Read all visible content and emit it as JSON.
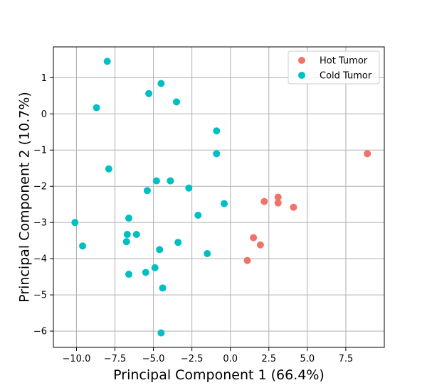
{
  "chart_data": {
    "type": "scatter",
    "title": "",
    "xlabel": "Principal Component 1 (66.4%)",
    "ylabel": "Principal Component 2 (10.7%)",
    "xlim": [
      -11.5,
      10.0
    ],
    "ylim": [
      -6.45,
      1.85
    ],
    "xticks": [
      -10.0,
      -7.5,
      -5.0,
      -2.5,
      0.0,
      2.5,
      5.0,
      7.5
    ],
    "xtick_labels": [
      "−10.0",
      "−7.5",
      "−5.0",
      "−2.5",
      "0.0",
      "2.5",
      "5.0",
      "7.5"
    ],
    "yticks": [
      1,
      0,
      -1,
      -2,
      -3,
      -4,
      -5,
      -6
    ],
    "ytick_labels": [
      "1",
      "0",
      "−1",
      "−2",
      "−3",
      "−4",
      "−5",
      "−6"
    ],
    "grid": true,
    "legend_position": "top-right",
    "series": [
      {
        "name": "Hot Tumor",
        "color": "#f07269",
        "points": [
          [
            8.9,
            -1.1
          ],
          [
            2.2,
            -2.42
          ],
          [
            3.1,
            -2.3
          ],
          [
            3.1,
            -2.46
          ],
          [
            4.1,
            -2.58
          ],
          [
            1.5,
            -3.42
          ],
          [
            1.95,
            -3.62
          ],
          [
            1.1,
            -4.05
          ]
        ]
      },
      {
        "name": "Cold Tumor",
        "color": "#00bfc4",
        "points": [
          [
            -8.0,
            1.45
          ],
          [
            -8.7,
            0.17
          ],
          [
            -5.3,
            0.56
          ],
          [
            -4.5,
            0.84
          ],
          [
            -3.5,
            0.33
          ],
          [
            -0.9,
            -0.47
          ],
          [
            -0.9,
            -1.1
          ],
          [
            -7.9,
            -1.52
          ],
          [
            -4.8,
            -1.85
          ],
          [
            -3.9,
            -1.85
          ],
          [
            -5.4,
            -2.12
          ],
          [
            -2.7,
            -2.05
          ],
          [
            -2.1,
            -2.8
          ],
          [
            -0.4,
            -2.48
          ],
          [
            -6.6,
            -2.88
          ],
          [
            -10.1,
            -3.0
          ],
          [
            -6.7,
            -3.33
          ],
          [
            -6.1,
            -3.33
          ],
          [
            -6.75,
            -3.53
          ],
          [
            -3.4,
            -3.55
          ],
          [
            -9.6,
            -3.65
          ],
          [
            -4.6,
            -3.75
          ],
          [
            -1.5,
            -3.86
          ],
          [
            -6.6,
            -4.43
          ],
          [
            -5.5,
            -4.38
          ],
          [
            -4.9,
            -4.25
          ],
          [
            -4.4,
            -4.81
          ],
          [
            -4.5,
            -6.05
          ]
        ]
      }
    ]
  }
}
